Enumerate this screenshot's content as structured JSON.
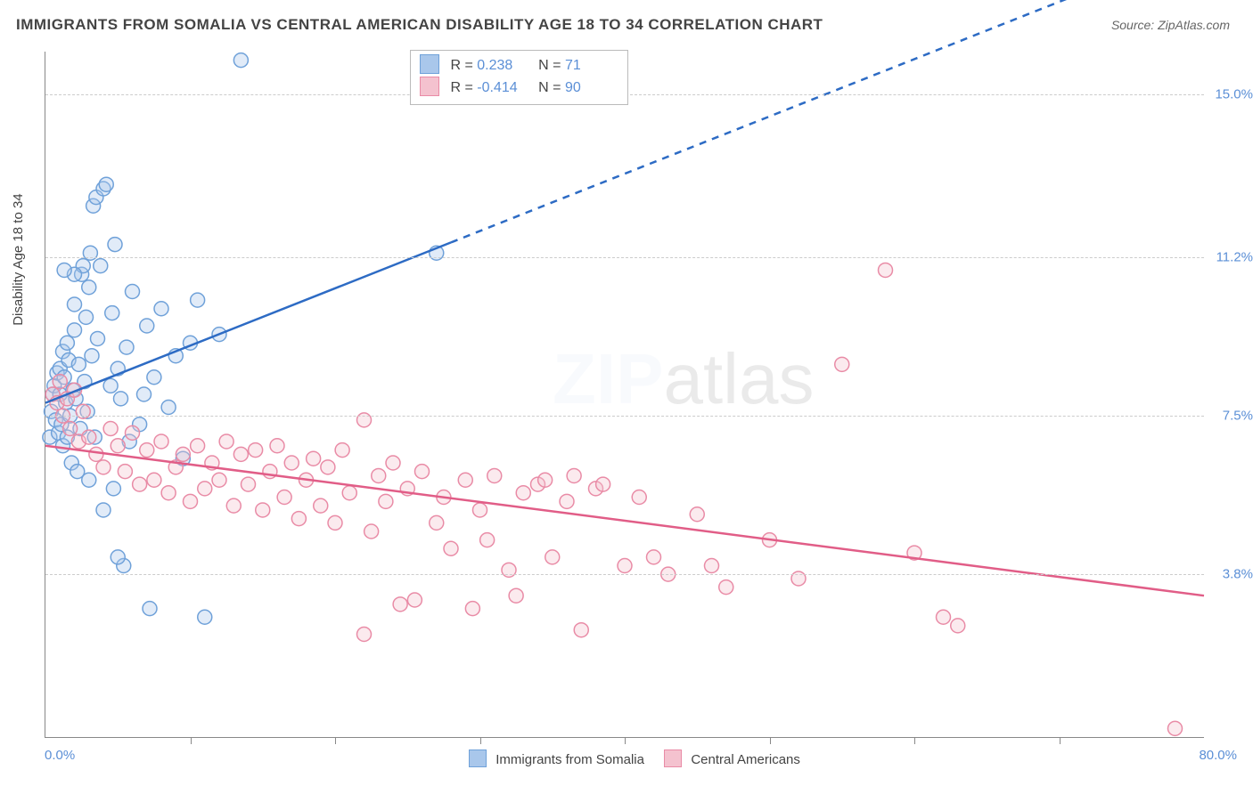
{
  "title": "IMMIGRANTS FROM SOMALIA VS CENTRAL AMERICAN DISABILITY AGE 18 TO 34 CORRELATION CHART",
  "source_label": "Source: ZipAtlas.com",
  "yaxis_title": "Disability Age 18 to 34",
  "watermark_a": "ZIP",
  "watermark_b": "atlas",
  "chart": {
    "type": "scatter-correlation",
    "background_color": "#ffffff",
    "grid_color": "#cccccc",
    "axis_color": "#888888",
    "tick_label_color": "#5b8fd6",
    "xlim": [
      0,
      80
    ],
    "ylim": [
      0,
      16
    ],
    "x_min_label": "0.0%",
    "x_max_label": "80.0%",
    "y_ticks": [
      {
        "v": 3.8,
        "label": "3.8%"
      },
      {
        "v": 7.5,
        "label": "7.5%"
      },
      {
        "v": 11.2,
        "label": "11.2%"
      },
      {
        "v": 15.0,
        "label": "15.0%"
      }
    ],
    "x_tick_positions": [
      10,
      20,
      30,
      40,
      50,
      60,
      70
    ],
    "marker_radius": 8,
    "marker_fill_opacity": 0.35,
    "marker_stroke_width": 1.5,
    "trend_line_width": 2.5,
    "series": [
      {
        "key": "somalia",
        "label": "Immigrants from Somalia",
        "color_fill": "#a9c7eb",
        "color_stroke": "#6fa1d9",
        "trend_color": "#2d6bc4",
        "stats": {
          "R": "0.238",
          "N": "71"
        },
        "trend": {
          "x1": 0,
          "y1": 7.8,
          "x2": 80,
          "y2": 18.5,
          "dash_after_x": 28
        },
        "points": [
          [
            0.3,
            7.0
          ],
          [
            0.4,
            7.6
          ],
          [
            0.5,
            8.0
          ],
          [
            0.6,
            8.2
          ],
          [
            0.7,
            7.4
          ],
          [
            0.8,
            8.5
          ],
          [
            0.9,
            7.1
          ],
          [
            1.0,
            8.0
          ],
          [
            1.0,
            8.6
          ],
          [
            1.1,
            7.3
          ],
          [
            1.2,
            9.0
          ],
          [
            1.2,
            6.8
          ],
          [
            1.3,
            8.4
          ],
          [
            1.4,
            7.8
          ],
          [
            1.5,
            7.0
          ],
          [
            1.5,
            9.2
          ],
          [
            1.6,
            8.8
          ],
          [
            1.7,
            7.5
          ],
          [
            1.8,
            6.4
          ],
          [
            1.9,
            8.1
          ],
          [
            2.0,
            9.5
          ],
          [
            2.0,
            10.1
          ],
          [
            2.1,
            7.9
          ],
          [
            2.2,
            6.2
          ],
          [
            2.3,
            8.7
          ],
          [
            2.4,
            7.2
          ],
          [
            2.5,
            10.8
          ],
          [
            2.6,
            11.0
          ],
          [
            2.7,
            8.3
          ],
          [
            2.8,
            9.8
          ],
          [
            2.9,
            7.6
          ],
          [
            3.0,
            10.5
          ],
          [
            3.0,
            6.0
          ],
          [
            3.1,
            11.3
          ],
          [
            3.2,
            8.9
          ],
          [
            3.3,
            12.4
          ],
          [
            3.4,
            7.0
          ],
          [
            3.5,
            12.6
          ],
          [
            3.6,
            9.3
          ],
          [
            3.8,
            11.0
          ],
          [
            4.0,
            5.3
          ],
          [
            4.0,
            12.8
          ],
          [
            4.2,
            12.9
          ],
          [
            4.5,
            8.2
          ],
          [
            4.6,
            9.9
          ],
          [
            4.7,
            5.8
          ],
          [
            4.8,
            11.5
          ],
          [
            5.0,
            8.6
          ],
          [
            5.2,
            7.9
          ],
          [
            5.4,
            4.0
          ],
          [
            5.6,
            9.1
          ],
          [
            5.8,
            6.9
          ],
          [
            6.0,
            10.4
          ],
          [
            6.5,
            7.3
          ],
          [
            6.8,
            8.0
          ],
          [
            7.0,
            9.6
          ],
          [
            7.2,
            3.0
          ],
          [
            7.5,
            8.4
          ],
          [
            8.0,
            10.0
          ],
          [
            8.5,
            7.7
          ],
          [
            9.0,
            8.9
          ],
          [
            9.5,
            6.5
          ],
          [
            10.0,
            9.2
          ],
          [
            10.5,
            10.2
          ],
          [
            11.0,
            2.8
          ],
          [
            12.0,
            9.4
          ],
          [
            13.5,
            15.8
          ],
          [
            5.0,
            4.2
          ],
          [
            2.0,
            10.8
          ],
          [
            1.3,
            10.9
          ],
          [
            27.0,
            11.3
          ]
        ]
      },
      {
        "key": "central",
        "label": "Central Americans",
        "color_fill": "#f4c2cf",
        "color_stroke": "#e98ba6",
        "trend_color": "#e15d87",
        "stats": {
          "R": "-0.414",
          "N": "90"
        },
        "trend": {
          "x1": 0,
          "y1": 6.8,
          "x2": 80,
          "y2": 3.3,
          "dash_after_x": 999
        },
        "points": [
          [
            0.5,
            8.0
          ],
          [
            0.8,
            7.8
          ],
          [
            1.0,
            8.3
          ],
          [
            1.2,
            7.5
          ],
          [
            1.5,
            7.9
          ],
          [
            1.7,
            7.2
          ],
          [
            2.0,
            8.1
          ],
          [
            2.3,
            6.9
          ],
          [
            2.6,
            7.6
          ],
          [
            3.0,
            7.0
          ],
          [
            3.5,
            6.6
          ],
          [
            4.0,
            6.3
          ],
          [
            4.5,
            7.2
          ],
          [
            5.0,
            6.8
          ],
          [
            5.5,
            6.2
          ],
          [
            6.0,
            7.1
          ],
          [
            6.5,
            5.9
          ],
          [
            7.0,
            6.7
          ],
          [
            7.5,
            6.0
          ],
          [
            8.0,
            6.9
          ],
          [
            8.5,
            5.7
          ],
          [
            9.0,
            6.3
          ],
          [
            9.5,
            6.6
          ],
          [
            10.0,
            5.5
          ],
          [
            10.5,
            6.8
          ],
          [
            11.0,
            5.8
          ],
          [
            11.5,
            6.4
          ],
          [
            12.0,
            6.0
          ],
          [
            12.5,
            6.9
          ],
          [
            13.0,
            5.4
          ],
          [
            13.5,
            6.6
          ],
          [
            14.0,
            5.9
          ],
          [
            14.5,
            6.7
          ],
          [
            15.0,
            5.3
          ],
          [
            15.5,
            6.2
          ],
          [
            16.0,
            6.8
          ],
          [
            16.5,
            5.6
          ],
          [
            17.0,
            6.4
          ],
          [
            17.5,
            5.1
          ],
          [
            18.0,
            6.0
          ],
          [
            18.5,
            6.5
          ],
          [
            19.0,
            5.4
          ],
          [
            19.5,
            6.3
          ],
          [
            20.0,
            5.0
          ],
          [
            20.5,
            6.7
          ],
          [
            21.0,
            5.7
          ],
          [
            22.0,
            7.4
          ],
          [
            22.5,
            4.8
          ],
          [
            23.0,
            6.1
          ],
          [
            23.5,
            5.5
          ],
          [
            24.0,
            6.4
          ],
          [
            24.5,
            3.1
          ],
          [
            25.0,
            5.8
          ],
          [
            25.5,
            3.2
          ],
          [
            26.0,
            6.2
          ],
          [
            27.0,
            5.0
          ],
          [
            27.5,
            5.6
          ],
          [
            28.0,
            4.4
          ],
          [
            29.0,
            6.0
          ],
          [
            29.5,
            3.0
          ],
          [
            30.0,
            5.3
          ],
          [
            30.5,
            4.6
          ],
          [
            31.0,
            6.1
          ],
          [
            32.0,
            3.9
          ],
          [
            32.5,
            3.3
          ],
          [
            33.0,
            5.7
          ],
          [
            34.0,
            5.9
          ],
          [
            34.5,
            6.0
          ],
          [
            35.0,
            4.2
          ],
          [
            36.0,
            5.5
          ],
          [
            36.5,
            6.1
          ],
          [
            37.0,
            2.5
          ],
          [
            38.0,
            5.8
          ],
          [
            38.5,
            5.9
          ],
          [
            40.0,
            4.0
          ],
          [
            41.0,
            5.6
          ],
          [
            42.0,
            4.2
          ],
          [
            43.0,
            3.8
          ],
          [
            45.0,
            5.2
          ],
          [
            46.0,
            4.0
          ],
          [
            47.0,
            3.5
          ],
          [
            50.0,
            4.6
          ],
          [
            52.0,
            3.7
          ],
          [
            55.0,
            8.7
          ],
          [
            58.0,
            10.9
          ],
          [
            60.0,
            4.3
          ],
          [
            62.0,
            2.8
          ],
          [
            63.0,
            2.6
          ],
          [
            78.0,
            0.2
          ],
          [
            22.0,
            2.4
          ]
        ]
      }
    ]
  },
  "bottom_legend": {
    "items": [
      {
        "key": "somalia"
      },
      {
        "key": "central"
      }
    ]
  }
}
